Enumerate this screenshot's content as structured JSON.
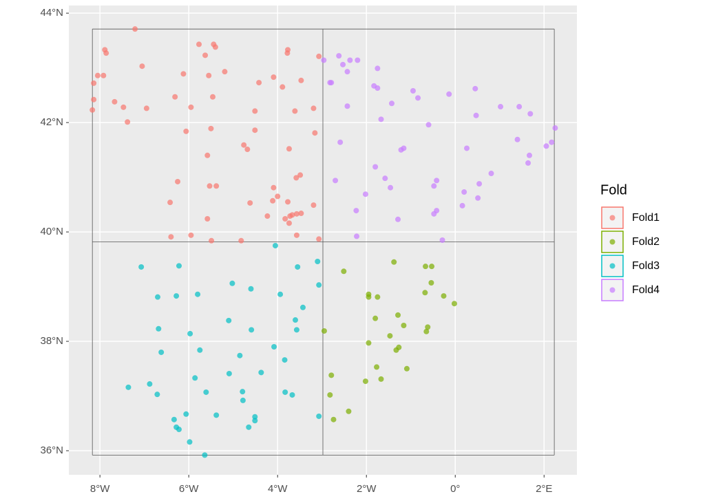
{
  "chart_data": {
    "type": "scatter",
    "xlim": [
      -8.7,
      2.74
    ],
    "ylim": [
      35.56,
      44.14
    ],
    "xticks": [
      {
        "value": -8,
        "label": "8°W"
      },
      {
        "value": -6,
        "label": "6°W"
      },
      {
        "value": -4,
        "label": "4°W"
      },
      {
        "value": -2,
        "label": "2°W"
      },
      {
        "value": 0,
        "label": "0°"
      },
      {
        "value": 2,
        "label": "2°E"
      }
    ],
    "yticks": [
      {
        "value": 36,
        "label": "36°N"
      },
      {
        "value": 38,
        "label": "38°N"
      },
      {
        "value": 40,
        "label": "40°N"
      },
      {
        "value": 42,
        "label": "42°N"
      },
      {
        "value": 44,
        "label": "44°N"
      }
    ],
    "grid": true,
    "legend_title": "Fold",
    "legend_position": "right",
    "block_x": [
      -8.17,
      -2.98,
      2.23
    ],
    "block_y": [
      35.92,
      39.82,
      43.71
    ],
    "series": [
      {
        "name": "Fold1",
        "color": "#F8766D",
        "x": [
          -7.21,
          -7.89,
          -7.86,
          -7.05,
          -8.05,
          -7.92,
          -8.14,
          -8.14,
          -7.67,
          -8.17,
          -7.47,
          -6.95,
          -7.38,
          -6.12,
          -5.63,
          -5.77,
          -5.44,
          -5.4,
          -5.55,
          -5.19,
          -6.31,
          -5.46,
          -5.95,
          -6.06,
          -5.5,
          -3.77,
          -3.78,
          -4.09,
          -4.42,
          -3.89,
          -3.47,
          -3.07,
          -4.51,
          -3.61,
          -3.19,
          -4.51,
          -3.16,
          -4.76,
          -4.68,
          -3.74,
          -5.58,
          -6.25,
          -5.53,
          -5.38,
          -6.42,
          -4.09,
          -3.49,
          -3.58,
          -4.0,
          -3.77,
          -4.62,
          -4.11,
          -3.19,
          -4.23,
          -3.83,
          -3.72,
          -3.67,
          -3.47,
          -3.57,
          -3.74,
          -5.58,
          -6.4,
          -5.95,
          -5.49,
          -4.82,
          -3.57,
          -3.07
        ],
        "y": [
          43.71,
          43.33,
          43.27,
          43.03,
          42.86,
          42.86,
          42.72,
          42.42,
          42.38,
          42.23,
          42.28,
          42.26,
          42.01,
          42.89,
          43.23,
          43.43,
          43.43,
          43.38,
          42.86,
          42.93,
          42.47,
          42.47,
          42.28,
          41.84,
          41.89,
          43.33,
          43.27,
          42.83,
          42.73,
          42.65,
          42.77,
          43.21,
          42.21,
          42.21,
          42.26,
          41.86,
          41.81,
          41.59,
          41.51,
          41.52,
          41.4,
          40.92,
          40.84,
          40.84,
          40.54,
          40.81,
          41.04,
          40.99,
          40.65,
          40.55,
          40.53,
          40.57,
          40.49,
          40.29,
          40.24,
          40.29,
          40.31,
          40.34,
          40.33,
          40.16,
          40.24,
          39.91,
          39.94,
          39.84,
          39.84,
          39.94,
          39.87
        ]
      },
      {
        "name": "Fold2",
        "color": "#7CAE00",
        "x": [
          -1.38,
          -2.51,
          -0.67,
          -0.53,
          -0.54,
          -1.95,
          -1.95,
          -1.75,
          -0.68,
          -0.26,
          -0.02,
          -1.8,
          -1.29,
          -1.16,
          -0.62,
          -0.65,
          -2.95,
          -1.47,
          -1.95,
          -1.27,
          -1.33,
          -1.77,
          -1.09,
          -2.79,
          -2.02,
          -1.67,
          -2.82,
          -2.74,
          -2.4
        ],
        "y": [
          39.45,
          39.28,
          39.37,
          39.37,
          39.07,
          38.86,
          38.81,
          38.81,
          38.89,
          38.83,
          38.69,
          38.42,
          38.48,
          38.29,
          38.26,
          38.18,
          38.19,
          38.1,
          37.97,
          37.89,
          37.84,
          37.53,
          37.5,
          37.38,
          37.27,
          37.31,
          37.02,
          36.57,
          36.72
        ]
      },
      {
        "name": "Fold3",
        "color": "#00BFC4",
        "x": [
          -4.05,
          -3.1,
          -7.07,
          -6.22,
          -3.55,
          -5.02,
          -4.6,
          -3.07,
          -6.7,
          -6.28,
          -5.8,
          -3.94,
          -3.43,
          -5.1,
          -3.6,
          -6.68,
          -5.97,
          -4.59,
          -3.57,
          -4.08,
          -6.62,
          -5.75,
          -4.85,
          -3.84,
          -4.37,
          -5.09,
          -5.86,
          -7.36,
          -6.88,
          -5.61,
          -6.71,
          -4.79,
          -4.78,
          -3.83,
          -3.67,
          -6.06,
          -6.33,
          -5.38,
          -4.51,
          -4.51,
          -3.07,
          -6.28,
          -6.22,
          -4.65,
          -5.98,
          -5.64
        ],
        "y": [
          39.75,
          39.46,
          39.36,
          39.38,
          39.36,
          39.06,
          38.96,
          39.03,
          38.81,
          38.83,
          38.86,
          38.86,
          38.62,
          38.38,
          38.39,
          38.23,
          38.14,
          38.21,
          38.21,
          37.9,
          37.8,
          37.84,
          37.74,
          37.66,
          37.43,
          37.41,
          37.33,
          37.16,
          37.22,
          37.07,
          37.03,
          37.08,
          36.92,
          37.07,
          37.02,
          36.67,
          36.57,
          36.65,
          36.62,
          36.55,
          36.63,
          36.43,
          36.39,
          36.43,
          36.16,
          35.92
        ]
      },
      {
        "name": "Fold4",
        "color": "#C77CFF",
        "x": [
          -2.96,
          -2.62,
          -2.53,
          -2.37,
          -2.2,
          -2.43,
          -1.75,
          -2.82,
          -2.79,
          -1.83,
          -1.75,
          -2.43,
          -1.43,
          -1.67,
          -0.95,
          -0.84,
          -0.14,
          0.45,
          -0.6,
          0.47,
          1.02,
          1.44,
          1.69,
          2.25,
          1.4,
          2.17,
          2.05,
          1.67,
          1.64,
          -1.16,
          -1.22,
          0.26,
          -2.59,
          -1.8,
          -2.7,
          -1.58,
          -1.46,
          0.81,
          0.54,
          0.2,
          -0.42,
          -0.48,
          -2.23,
          -2.02,
          -0.42,
          -0.48,
          0.16,
          0.51,
          -1.29,
          -2.22,
          -0.29
        ],
        "y": [
          43.14,
          43.22,
          43.06,
          43.14,
          43.14,
          42.93,
          42.99,
          42.73,
          42.73,
          42.67,
          42.63,
          42.3,
          42.35,
          42.06,
          42.58,
          42.45,
          42.52,
          42.62,
          41.96,
          42.13,
          42.29,
          42.29,
          42.16,
          41.9,
          41.69,
          41.64,
          41.57,
          41.4,
          41.26,
          41.53,
          41.5,
          41.53,
          41.64,
          41.19,
          40.94,
          40.98,
          40.81,
          41.07,
          40.88,
          40.73,
          40.94,
          40.84,
          40.39,
          40.69,
          40.39,
          40.33,
          40.48,
          40.62,
          40.23,
          39.92,
          39.85
        ]
      }
    ]
  }
}
